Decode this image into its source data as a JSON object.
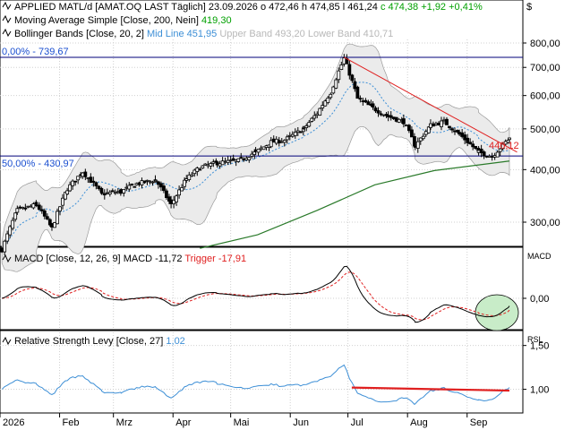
{
  "header": {
    "line1_title": "APPLIED MATL/d [AMAT.OQ LAST Täglich]",
    "line1_date": "23.09.2026",
    "line1_o": "o 472,46",
    "line1_h": "h 474,85",
    "line1_l": "l 461,24",
    "line1_c": "c 474,38",
    "line1_chg": "+1,92",
    "line1_pct": "+0,41%",
    "line2_label": "Moving Average Simple",
    "line2_params": "[Close, 200, Nein]",
    "line2_value": "419,30",
    "line3_label": "Bollinger Bands",
    "line3_params": "[Close, 20, 2]",
    "line3_mid": "Mid Line 451,95",
    "line3_upper": "Upper Band 493,20",
    "line3_lower": "Lower Band 410,71",
    "close_icon": "$"
  },
  "price_levels": {
    "fib_0_label": "0,00% - 739,67",
    "fib_50_label": "50,00% - 430,97",
    "last_label": "440,12"
  },
  "macd_header": {
    "label": "MACD",
    "params": "[Close, 12, 26, 9]",
    "value": "MACD -11,72",
    "trigger": "Trigger -17,91",
    "side_label": "MACD"
  },
  "rsl_header": {
    "label": "Relative Strength Levy",
    "params": "[Close, 27]",
    "value": "1,02",
    "side_label": "RSL"
  },
  "axes": {
    "price_ticks": [
      "800,00",
      "700,00",
      "600,00",
      "500,00",
      "400,00",
      "300,00"
    ],
    "macd_ticks": [
      "0,00"
    ],
    "rsl_ticks": [
      "1,50",
      "1,00"
    ],
    "months": [
      "2026",
      "Feb",
      "Mrz",
      "Apr",
      "Mai",
      "Jun",
      "Jul",
      "Aug",
      "Sep"
    ]
  },
  "colors": {
    "candle": "#000000",
    "bollinger": "#3d8fd6",
    "bollinger_fill": "#ebebeb",
    "ma200": "#2a7a2a",
    "trendline": "#e02020",
    "hline": "#00007a",
    "macd_line": "#000000",
    "trigger": "#e02020",
    "rsl_line": "#3d8fd6",
    "rsl_trend": "#e02020",
    "highlight": "#c8ecc8",
    "positive": "#00a000",
    "neutral_blue": "#3d8fd6"
  },
  "chart_data": [
    {
      "type": "candlestick",
      "title": "APPLIED MATL/d [AMAT.OQ LAST Täglich]",
      "ylim": [
        250,
        830
      ],
      "yscale": "log",
      "x_months": [
        "2026",
        "Feb",
        "Mrz",
        "Apr",
        "Mai",
        "Jun",
        "Jul",
        "Aug",
        "Sep"
      ],
      "close_anchors": [
        {
          "date": "2026-01-02",
          "close": 258
        },
        {
          "date": "2026-01-10",
          "close": 320
        },
        {
          "date": "2026-01-20",
          "close": 330
        },
        {
          "date": "2026-01-28",
          "close": 290
        },
        {
          "date": "2026-02-05",
          "close": 360
        },
        {
          "date": "2026-02-13",
          "close": 395
        },
        {
          "date": "2026-02-23",
          "close": 350
        },
        {
          "date": "2026-03-05",
          "close": 355
        },
        {
          "date": "2026-03-13",
          "close": 370
        },
        {
          "date": "2026-03-23",
          "close": 378
        },
        {
          "date": "2026-03-31",
          "close": 330
        },
        {
          "date": "2026-04-08",
          "close": 380
        },
        {
          "date": "2026-04-15",
          "close": 405
        },
        {
          "date": "2026-04-24",
          "close": 415
        },
        {
          "date": "2026-05-05",
          "close": 420
        },
        {
          "date": "2026-05-14",
          "close": 440
        },
        {
          "date": "2026-05-22",
          "close": 465
        },
        {
          "date": "2026-05-29",
          "close": 470
        },
        {
          "date": "2026-06-08",
          "close": 500
        },
        {
          "date": "2026-06-15",
          "close": 545
        },
        {
          "date": "2026-06-22",
          "close": 610
        },
        {
          "date": "2026-06-29",
          "close": 735
        },
        {
          "date": "2026-07-06",
          "close": 590
        },
        {
          "date": "2026-07-14",
          "close": 560
        },
        {
          "date": "2026-07-22",
          "close": 535
        },
        {
          "date": "2026-07-30",
          "close": 520
        },
        {
          "date": "2026-08-05",
          "close": 455
        },
        {
          "date": "2026-08-13",
          "close": 510
        },
        {
          "date": "2026-08-20",
          "close": 520
        },
        {
          "date": "2026-08-28",
          "close": 485
        },
        {
          "date": "2026-09-07",
          "close": 440
        },
        {
          "date": "2026-09-14",
          "close": 430
        },
        {
          "date": "2026-09-23",
          "close": 474.38
        }
      ],
      "series": [
        {
          "name": "Moving Average Simple",
          "params": "Close, 200",
          "last": 419.3,
          "values": [
            {
              "date": "2026-04-15",
              "v": 260
            },
            {
              "date": "2026-05-15",
              "v": 280
            },
            {
              "date": "2026-06-15",
              "v": 320
            },
            {
              "date": "2026-07-15",
              "v": 368
            },
            {
              "date": "2026-08-15",
              "v": 398
            },
            {
              "date": "2026-09-23",
              "v": 419.3
            }
          ]
        },
        {
          "name": "Bollinger Bands",
          "params": "Close, 20, 2",
          "mid": 451.95,
          "upper": 493.2,
          "lower": 410.71
        }
      ],
      "horizontal_lines": [
        {
          "label": "0,00% - 739,67",
          "value": 739.67
        },
        {
          "label": "50,00% - 430,97",
          "value": 430.97
        }
      ],
      "trendline": {
        "from": {
          "date": "2026-06-29",
          "value": 739.67
        },
        "to": {
          "date": "2026-09-27",
          "value": 440.12
        }
      }
    },
    {
      "type": "line",
      "title": "MACD [Close, 12, 26, 9]",
      "series": [
        {
          "name": "MACD",
          "last": -11.72
        },
        {
          "name": "Trigger",
          "last": -17.91
        }
      ],
      "yticks": [
        "0,00"
      ]
    },
    {
      "type": "line",
      "title": "Relative Strength Levy [Close, 27]",
      "series": [
        {
          "name": "Relative Strength Levy",
          "last": 1.02
        }
      ],
      "yticks": [
        "1,50",
        "1,00"
      ],
      "trendline": {
        "from": {
          "date": "2026-07-03",
          "value": 1.02
        },
        "to": {
          "date": "2026-09-23",
          "value": 0.985
        }
      }
    }
  ]
}
